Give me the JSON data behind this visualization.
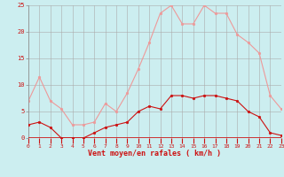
{
  "hours": [
    0,
    1,
    2,
    3,
    4,
    5,
    6,
    7,
    8,
    9,
    10,
    11,
    12,
    13,
    14,
    15,
    16,
    17,
    18,
    19,
    20,
    21,
    22,
    23
  ],
  "wind_avg": [
    2.5,
    3.0,
    2.0,
    0.0,
    0.0,
    0.0,
    1.0,
    2.0,
    2.5,
    3.0,
    5.0,
    6.0,
    5.5,
    8.0,
    8.0,
    7.5,
    8.0,
    8.0,
    7.5,
    7.0,
    5.0,
    4.0,
    1.0,
    0.5
  ],
  "wind_gust": [
    7.0,
    11.5,
    7.0,
    5.5,
    2.5,
    2.5,
    3.0,
    6.5,
    5.0,
    8.5,
    13.0,
    18.0,
    23.5,
    25.0,
    21.5,
    21.5,
    25.0,
    23.5,
    23.5,
    19.5,
    18.0,
    16.0,
    8.0,
    5.5
  ],
  "ylim": [
    0,
    25
  ],
  "yticks": [
    0,
    5,
    10,
    15,
    20,
    25
  ],
  "xlabel": "Vent moyen/en rafales ( km/h )",
  "bg_color": "#cceef0",
  "grid_color": "#aaaaaa",
  "avg_color": "#cc1111",
  "gust_color": "#ee9999",
  "line_width": 0.8,
  "marker_size": 2.0
}
